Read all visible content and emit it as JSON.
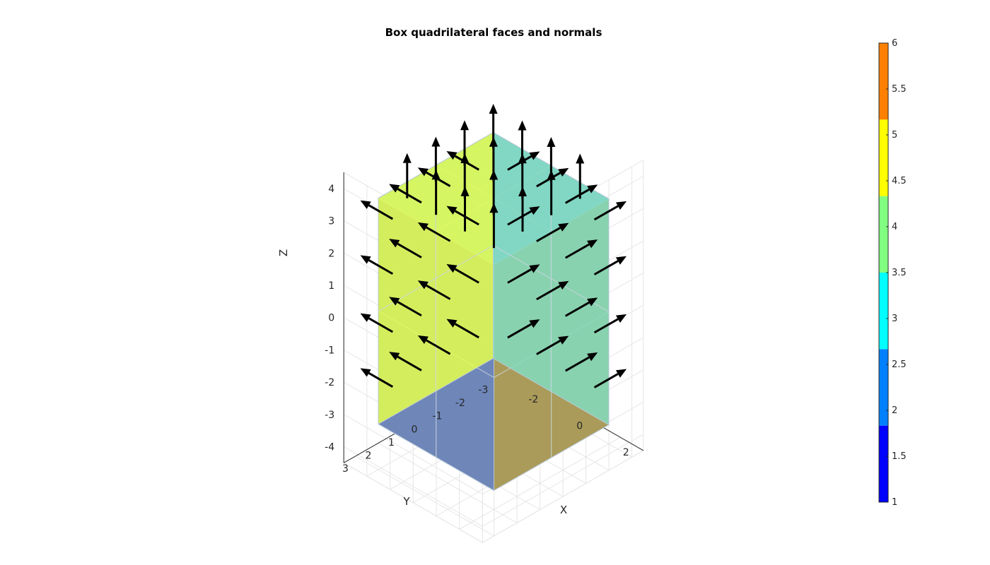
{
  "chart_data": {
    "type": "3d-quiver-surface",
    "title": "Box quadrilateral faces and normals",
    "xlabel": "X",
    "ylabel": "Y",
    "zlabel": "Z",
    "xlim": [
      -3,
      3
    ],
    "ylim": [
      -3.5,
      3.5
    ],
    "zlim": [
      -4.5,
      4.5
    ],
    "x_ticks": [
      -2,
      0,
      2
    ],
    "y_ticks": [
      3,
      2,
      1,
      0,
      -1,
      -2,
      -3
    ],
    "z_ticks": [
      4,
      3,
      2,
      1,
      0,
      -1,
      -2,
      -3,
      -4
    ],
    "grid": true,
    "box": {
      "x": [
        -2.5,
        2.5
      ],
      "y": [
        -2.5,
        2.5
      ],
      "z": [
        -3.5,
        3.5
      ]
    },
    "faces": [
      {
        "face": "+z",
        "value": 3,
        "color": "#5ab3dc",
        "normal": [
          0,
          0,
          1
        ]
      },
      {
        "face": "-x",
        "value": 5,
        "color": "#e6ff4c",
        "normal": [
          -1,
          0,
          0
        ]
      },
      {
        "face": "-y",
        "value": 4,
        "color": "#84dcbe",
        "normal": [
          0,
          -1,
          0
        ]
      },
      {
        "face": "-z",
        "value": 2,
        "color": "#45b5f7",
        "normal": [
          0,
          0,
          -1
        ]
      },
      {
        "face": "+x",
        "value": 6,
        "color": "#aa9b5a",
        "normal": [
          1,
          0,
          0
        ]
      },
      {
        "face": "+y",
        "value": 1,
        "color": "#6e86b8",
        "normal": [
          0,
          1,
          0
        ]
      }
    ],
    "colorbar": {
      "ticks": [
        "1",
        "1.5",
        "2",
        "2.5",
        "3",
        "3.5",
        "4",
        "4.5",
        "5",
        "5.5",
        "6"
      ],
      "limits": [
        1,
        6
      ],
      "colors": [
        "#0000ff",
        "#0080ff",
        "#00ffff",
        "#80ff80",
        "#ffff00",
        "#ff8000"
      ],
      "position": "right"
    }
  }
}
